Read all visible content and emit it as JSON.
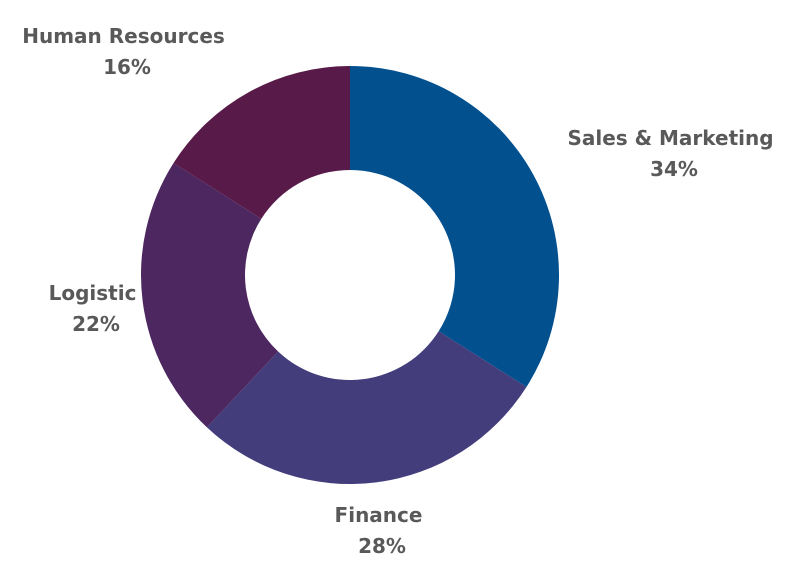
{
  "chart_data": {
    "type": "pie",
    "donut": true,
    "legend": "none",
    "slices": [
      {
        "label": "Sales & Marketing",
        "value": 34,
        "value_label": "34%",
        "color": "#03508F"
      },
      {
        "label": "Finance",
        "value": 28,
        "value_label": "28%",
        "color": "#433D7C"
      },
      {
        "label": "Logistic",
        "value": 22,
        "value_label": "22%",
        "color": "#4D2760"
      },
      {
        "label": "Human Resources",
        "value": 16,
        "value_label": "16%",
        "color": "#581A48"
      }
    ]
  }
}
